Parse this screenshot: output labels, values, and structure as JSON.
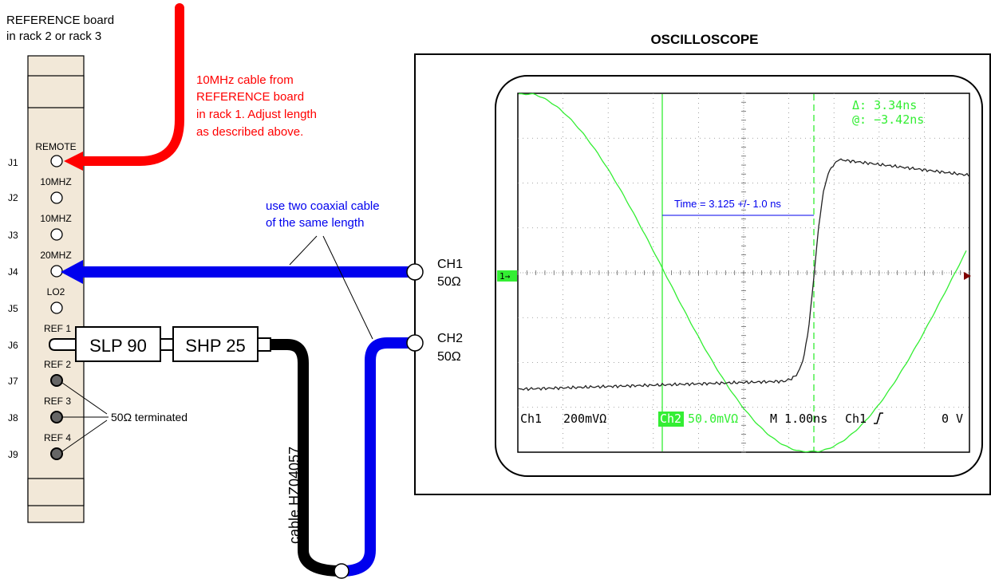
{
  "board": {
    "title_line1": "REFERENCE board",
    "title_line2": "in rack 2 or rack 3",
    "jacks": [
      {
        "id": "J1",
        "label": "REMOTE"
      },
      {
        "id": "J2",
        "label": "10MHZ"
      },
      {
        "id": "J3",
        "label": "10MHZ"
      },
      {
        "id": "J4",
        "label": "20MHZ"
      },
      {
        "id": "J5",
        "label": "LO2"
      },
      {
        "id": "J6",
        "label": "REF 1"
      },
      {
        "id": "J7",
        "label": "REF 2"
      },
      {
        "id": "J8",
        "label": "REF 3"
      },
      {
        "id": "J9",
        "label": "REF 4"
      }
    ],
    "terminated_label": "50Ω terminated"
  },
  "red_note": {
    "line1": "10MHz cable from",
    "line2": "REFERENCE board",
    "line3": "in rack 1. Adjust length",
    "line4": "as described above."
  },
  "blue_note": {
    "line1": "use two coaxial cable",
    "line2": "of the same length"
  },
  "filters": {
    "slp": "SLP 90",
    "shp": "SHP 25"
  },
  "cable_label": "cable HZ04057",
  "oscilloscope": {
    "title": "OSCILLOSCOPE",
    "ch1_label": "CH1",
    "ch1_imp": "50Ω",
    "ch2_label": "CH2",
    "ch2_imp": "50Ω",
    "delta_readout": "Δ: 3.34ns",
    "at_readout": "@: −3.42ns",
    "time_annotation": "Time = 3.125 +/- 1.0 ns",
    "status": {
      "ch1": "Ch1",
      "ch1_scale": "200mVΩ",
      "ch2": "Ch2",
      "ch2_scale": "50.0mVΩ",
      "timebase": "M 1.00ns",
      "trigger_src": "Ch1",
      "trigger_level": "0 V"
    },
    "marker_label": "1→"
  },
  "colors": {
    "red": "#ff0000",
    "blue": "#0000ee",
    "green": "#33ee33",
    "black": "#000000",
    "panel": "#f2e8d8"
  }
}
